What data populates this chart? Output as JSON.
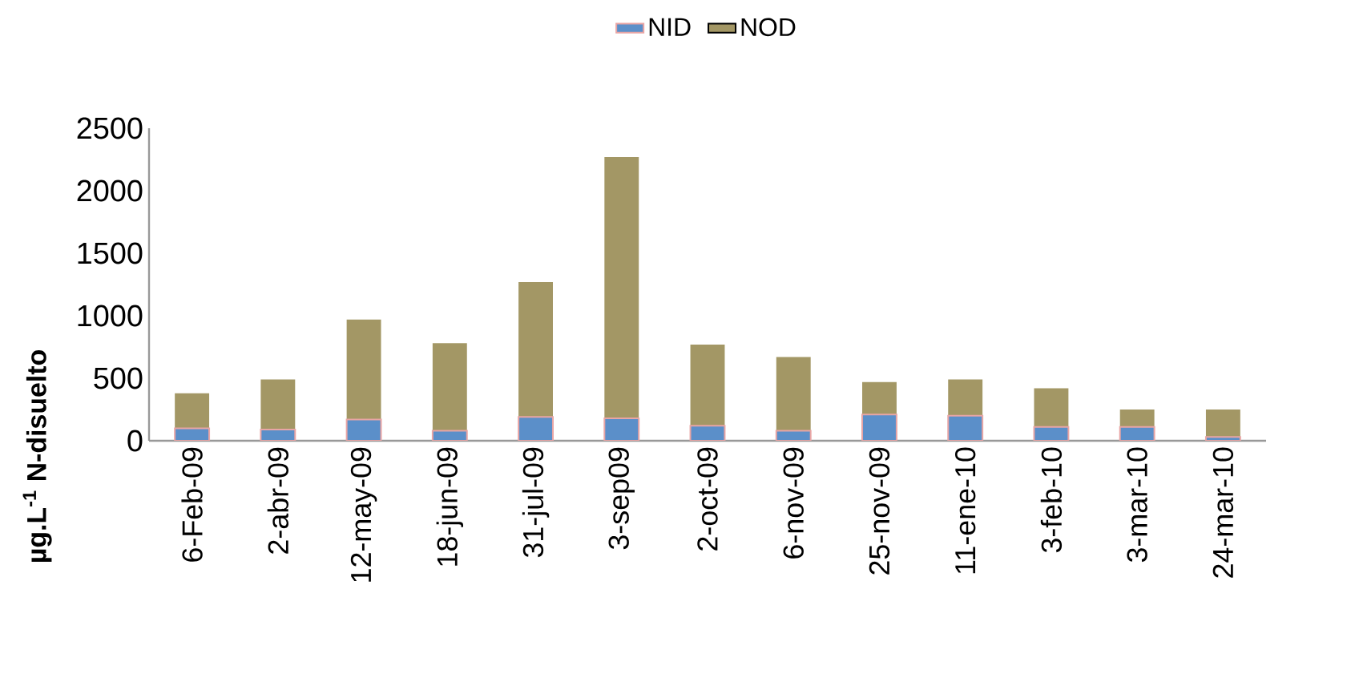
{
  "chart_data": {
    "type": "bar",
    "stacked": true,
    "ylabel": "µg.L$^{-1}$ N-disuelto",
    "categories": [
      "6-Feb-09",
      "2-abr-09",
      "12-may-09",
      "18-jun-09",
      "31-jul-09",
      "3-sep09",
      "2-oct-09",
      "6-nov-09",
      "25-nov-09",
      "11-ene-10",
      "3-feb-10",
      "3-mar-10",
      "24-mar-10"
    ],
    "series": [
      {
        "name": "NID",
        "color": "#5b8fc9",
        "values": [
          100,
          90,
          170,
          80,
          190,
          180,
          120,
          80,
          210,
          200,
          110,
          110,
          30
        ]
      },
      {
        "name": "NOD",
        "color": "#a39765",
        "values": [
          280,
          400,
          800,
          700,
          1080,
          2090,
          650,
          590,
          260,
          290,
          310,
          140,
          220
        ]
      }
    ],
    "ylim": [
      0,
      2500
    ],
    "yticks": [
      0,
      500,
      1000,
      1500,
      2000,
      2500
    ],
    "legend": "top"
  }
}
